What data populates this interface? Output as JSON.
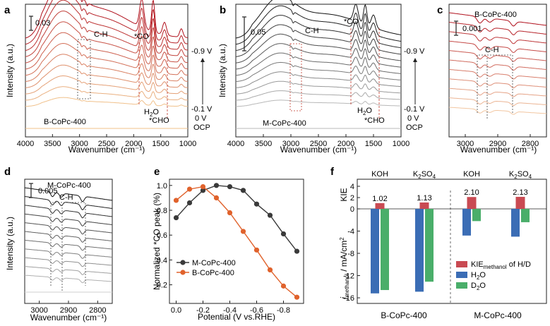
{
  "chart_data": [
    {
      "panel": "a",
      "type": "line",
      "xlabel": "Wavenumber (cm⁻¹)",
      "ylabel": "Intensity (a.u.)",
      "xlim": [
        4000,
        1000
      ],
      "x_ticks": [
        "4000",
        "3500",
        "3000",
        "2500",
        "2000",
        "1500",
        "1000"
      ],
      "scale_bar": "0.03",
      "sample": "B-CoPc-400",
      "annotations": {
        "ch": "C-H",
        "co": "*CO",
        "h2o": "H",
        "h2o_sub": "2",
        "h2o_tail": "O",
        "cho": "*CHO"
      },
      "potential_labels": [
        "-0.9 V",
        "-0.1 V",
        "0 V",
        "OCP"
      ],
      "n_spectra": 12
    },
    {
      "panel": "b",
      "type": "line",
      "xlabel": "Wavenumber (cm⁻¹)",
      "ylabel": "Intensity (a.u.)",
      "xlim": [
        4000,
        1000
      ],
      "x_ticks": [
        "4000",
        "3500",
        "3000",
        "2500",
        "2000",
        "1500",
        "1000"
      ],
      "scale_bar": "0.05",
      "sample": "M-CoPc-400",
      "annotations": {
        "ch": "C-H",
        "co": "*CO",
        "h2o": "H",
        "h2o_sub": "2",
        "h2o_tail": "O",
        "cho": "*CHO"
      },
      "potential_labels": [
        "-0.9 V",
        "-0.1 V",
        "0 V",
        "OCP"
      ],
      "n_spectra": 12
    },
    {
      "panel": "c",
      "type": "line",
      "xlabel": "Wavenumber (cm⁻¹)",
      "xlim": [
        3050,
        2750
      ],
      "x_ticks": [
        "3000",
        "2900",
        "2800"
      ],
      "scale_bar": "0.001",
      "sample": "B-CoPc-400",
      "annotations": {
        "ch": "C-H"
      },
      "n_spectra": 11
    },
    {
      "panel": "d",
      "type": "line",
      "xlabel": "Wavenumber (cm⁻¹)",
      "ylabel": "Intensity (a.u.)",
      "xlim": [
        3050,
        2750
      ],
      "x_ticks": [
        "3000",
        "2900",
        "2800"
      ],
      "scale_bar": "0.005",
      "sample": "M-CoPc-400",
      "annotations": {
        "ch": "C-H"
      },
      "n_spectra": 11
    },
    {
      "panel": "e",
      "type": "line",
      "xlabel": "Potential (V vs.RHE)",
      "ylabel": "Normalized *CO peak (%)",
      "xlim": [
        0.05,
        -0.95
      ],
      "ylim": [
        0.05,
        1.05
      ],
      "x_ticks": [
        "0.0",
        "-0.2",
        "-0.4",
        "-0.6",
        "-0.8"
      ],
      "x_tick_values": [
        0.0,
        -0.2,
        -0.4,
        -0.6,
        -0.8
      ],
      "y_ticks": [
        "0.2",
        "0.4",
        "0.6",
        "0.8",
        "1.0"
      ],
      "y_tick_values": [
        0.2,
        0.4,
        0.6,
        0.8,
        1.0
      ],
      "x": [
        0.0,
        -0.1,
        -0.2,
        -0.3,
        -0.4,
        -0.5,
        -0.6,
        -0.7,
        -0.8,
        -0.9
      ],
      "series": [
        {
          "name": "M-CoPc-400",
          "color": "#3a3a3a",
          "values": [
            0.74,
            0.86,
            0.96,
            1.0,
            0.99,
            0.96,
            0.85,
            0.76,
            0.61,
            0.47
          ]
        },
        {
          "name": "B-CoPc-400",
          "color": "#e0622c",
          "values": [
            0.88,
            0.97,
            0.99,
            0.9,
            0.78,
            0.63,
            0.48,
            0.32,
            0.19,
            0.1
          ]
        }
      ]
    },
    {
      "panel": "f",
      "type": "bar",
      "ylabel_top": "KIE",
      "ylabel_bottom_main": "j",
      "ylabel_bottom_sub": "methanol",
      "ylabel_bottom_unit": " / mA/cm",
      "ylabel_bottom_sup": "2",
      "electrolytes": [
        {
          "base": "KOH",
          "sub": "",
          "tail": ""
        },
        {
          "base": "K",
          "sub": "2",
          "tail": "SO",
          "sub2": "4"
        },
        {
          "base": "KOH",
          "sub": "",
          "tail": ""
        },
        {
          "base": "K",
          "sub": "2",
          "tail": "SO",
          "sub2": "4"
        }
      ],
      "group_labels": [
        "B-CoPc-400",
        "M-CoPc-400"
      ],
      "kie_values": [
        1.02,
        1.13,
        2.1,
        2.13
      ],
      "kie_labels": [
        "1.02",
        "1.13",
        "2.10",
        "2.13"
      ],
      "h2o_values": [
        -15.2,
        -14.9,
        -4.8,
        -5.0
      ],
      "d2o_values": [
        -14.6,
        -13.1,
        -2.2,
        -2.4
      ],
      "kie_ticks": [
        "4",
        "2",
        "0"
      ],
      "kie_tick_values": [
        4,
        2,
        0
      ],
      "kie_ylim": [
        0,
        4
      ],
      "j_ticks": [
        "0",
        "-4",
        "-8",
        "-12",
        "-16"
      ],
      "j_tick_values": [
        0,
        -4,
        -8,
        -12,
        -16
      ],
      "j_ylim": [
        -16.5,
        0
      ],
      "legend": [
        {
          "main": "KIE",
          "sub": "methanol",
          "tail": " of H/D",
          "color": "#c94a52"
        },
        {
          "main": "H",
          "sub": "2",
          "tail": "O",
          "color": "#3b6db5"
        },
        {
          "main": "D",
          "sub": "2",
          "tail": "O",
          "color": "#4aae6a"
        }
      ]
    }
  ],
  "panel_labels": [
    "a",
    "b",
    "c",
    "d",
    "e",
    "f"
  ]
}
